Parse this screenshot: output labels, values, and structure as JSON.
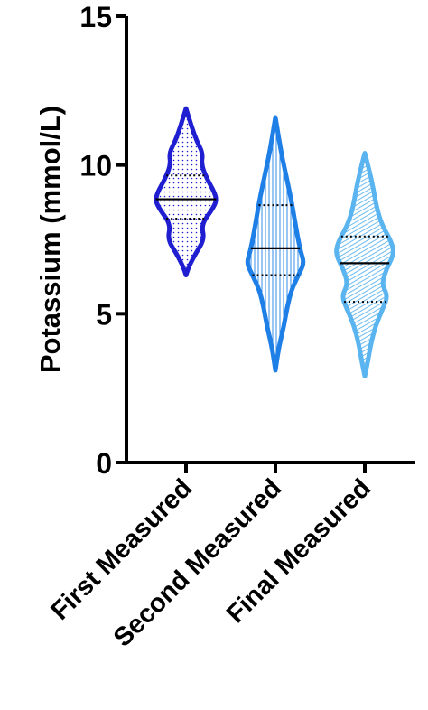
{
  "chart_data": {
    "type": "violin",
    "ylabel": "Potassium (mmol/L)",
    "xlabel": "",
    "ylim": [
      0,
      15
    ],
    "yticks": [
      0,
      5,
      10,
      15
    ],
    "categories": [
      "First Measured",
      "Second Measured",
      "Final Measured"
    ],
    "series": [
      {
        "category": "First Measured",
        "color": "#1f1fd1",
        "fill_pattern": "dots",
        "min": 6.3,
        "max": 11.9,
        "median": 8.85,
        "q1": 8.2,
        "q3": 9.65,
        "density": [
          [
            6.3,
            0.0
          ],
          [
            6.6,
            0.1
          ],
          [
            7.0,
            0.3
          ],
          [
            7.5,
            0.6
          ],
          [
            8.0,
            0.5
          ],
          [
            8.5,
            0.85
          ],
          [
            8.8,
            1.0
          ],
          [
            9.1,
            0.92
          ],
          [
            9.5,
            0.7
          ],
          [
            10.0,
            0.5
          ],
          [
            10.4,
            0.55
          ],
          [
            10.8,
            0.35
          ],
          [
            11.3,
            0.18
          ],
          [
            11.9,
            0.0
          ]
        ]
      },
      {
        "category": "Second Measured",
        "color": "#1e7fe6",
        "fill_pattern": "vertical-lines",
        "min": 3.1,
        "max": 11.6,
        "median": 7.2,
        "q1": 6.3,
        "q3": 8.65,
        "density": [
          [
            3.1,
            0.0
          ],
          [
            3.6,
            0.07
          ],
          [
            4.0,
            0.14
          ],
          [
            4.6,
            0.28
          ],
          [
            5.2,
            0.38
          ],
          [
            5.8,
            0.52
          ],
          [
            6.3,
            0.75
          ],
          [
            6.7,
            0.94
          ],
          [
            7.1,
            0.82
          ],
          [
            7.6,
            0.72
          ],
          [
            8.2,
            0.62
          ],
          [
            8.8,
            0.52
          ],
          [
            9.5,
            0.38
          ],
          [
            10.2,
            0.23
          ],
          [
            10.9,
            0.11
          ],
          [
            11.6,
            0.0
          ]
        ]
      },
      {
        "category": "Final Measured",
        "color": "#5ab4f0",
        "fill_pattern": "diagonal-lines",
        "min": 2.9,
        "max": 10.4,
        "median": 6.7,
        "q1": 5.4,
        "q3": 7.6,
        "density": [
          [
            2.9,
            0.0
          ],
          [
            3.4,
            0.1
          ],
          [
            4.0,
            0.2
          ],
          [
            4.6,
            0.35
          ],
          [
            5.2,
            0.6
          ],
          [
            5.6,
            0.75
          ],
          [
            6.0,
            0.55
          ],
          [
            6.5,
            0.7
          ],
          [
            7.0,
            0.95
          ],
          [
            7.4,
            0.88
          ],
          [
            8.0,
            0.55
          ],
          [
            8.6,
            0.38
          ],
          [
            9.2,
            0.28
          ],
          [
            9.8,
            0.15
          ],
          [
            10.4,
            0.0
          ]
        ]
      }
    ]
  }
}
